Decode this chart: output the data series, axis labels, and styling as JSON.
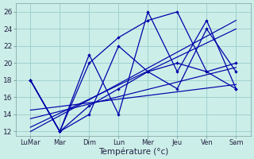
{
  "xlabel": "Température (°c)",
  "background_color": "#cceee8",
  "grid_color": "#99cccc",
  "line_color": "#0000aa",
  "ylim": [
    11.5,
    27.0
  ],
  "yticks": [
    12,
    14,
    16,
    18,
    20,
    22,
    24,
    26
  ],
  "x_labels": [
    "LuMar",
    "Mar",
    "Dim",
    "Lun",
    "Mer",
    "Jeu",
    "Ven",
    "Sam"
  ],
  "series": [
    [
      18,
      12,
      21,
      14,
      26,
      19,
      25,
      17
    ],
    [
      18,
      12,
      20,
      23,
      25,
      26,
      19,
      17
    ],
    [
      18,
      12,
      15,
      17,
      19,
      20,
      19,
      20
    ],
    [
      18,
      12,
      14,
      22,
      19,
      17,
      24,
      19
    ]
  ],
  "trends": [
    [
      [
        0,
        7
      ],
      [
        12.0,
        25.0
      ]
    ],
    [
      [
        0,
        7
      ],
      [
        12.5,
        24.0
      ]
    ],
    [
      [
        0,
        7
      ],
      [
        13.5,
        19.5
      ]
    ],
    [
      [
        0,
        7
      ],
      [
        14.5,
        17.5
      ]
    ]
  ]
}
